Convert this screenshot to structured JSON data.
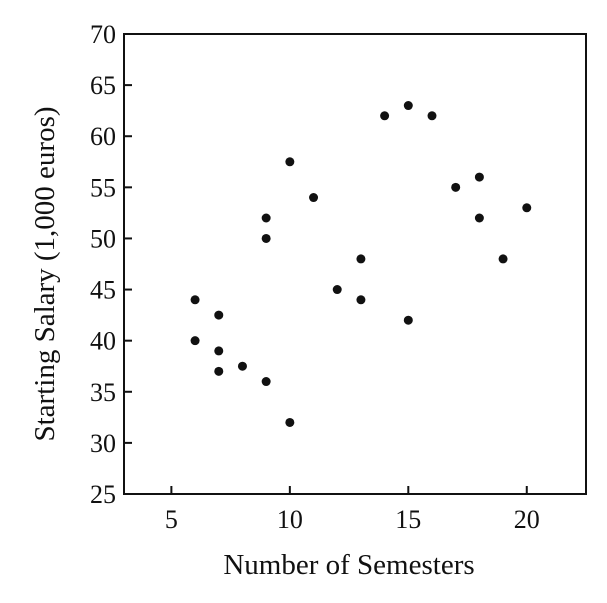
{
  "chart_data": {
    "type": "scatter",
    "xlabel": "Number of Semesters",
    "ylabel": "Starting Salary (1,000 euros)",
    "xlim": [
      3,
      22.5
    ],
    "ylim": [
      25,
      70
    ],
    "xticks": [
      5,
      10,
      15,
      20
    ],
    "yticks": [
      25,
      30,
      35,
      40,
      45,
      50,
      55,
      60,
      65,
      70
    ],
    "grid": false,
    "series": [
      {
        "points": [
          {
            "x": 6,
            "y": 44
          },
          {
            "x": 6,
            "y": 40
          },
          {
            "x": 7,
            "y": 42.5
          },
          {
            "x": 7,
            "y": 39
          },
          {
            "x": 7,
            "y": 37
          },
          {
            "x": 8,
            "y": 37.5
          },
          {
            "x": 9,
            "y": 52
          },
          {
            "x": 9,
            "y": 50
          },
          {
            "x": 9,
            "y": 36
          },
          {
            "x": 10,
            "y": 57.5
          },
          {
            "x": 10,
            "y": 32
          },
          {
            "x": 11,
            "y": 54
          },
          {
            "x": 12,
            "y": 45
          },
          {
            "x": 13,
            "y": 48
          },
          {
            "x": 13,
            "y": 44
          },
          {
            "x": 14,
            "y": 62
          },
          {
            "x": 15,
            "y": 63
          },
          {
            "x": 15,
            "y": 42
          },
          {
            "x": 16,
            "y": 62
          },
          {
            "x": 17,
            "y": 55
          },
          {
            "x": 18,
            "y": 56
          },
          {
            "x": 18,
            "y": 52
          },
          {
            "x": 19,
            "y": 48
          },
          {
            "x": 20,
            "y": 53
          }
        ]
      }
    ],
    "colors": {
      "point": "#111111",
      "axis": "#111111",
      "background": "#ffffff"
    }
  }
}
